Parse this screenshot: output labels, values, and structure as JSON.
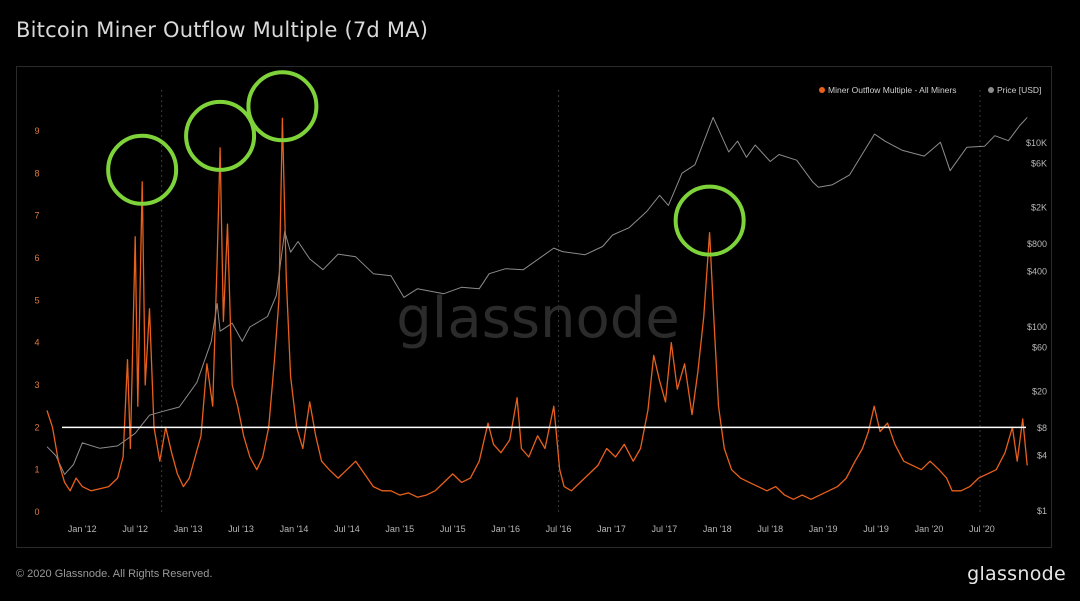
{
  "title": "Bitcoin Miner Outflow Multiple (7d MA)",
  "footer": {
    "copyright": "© 2020 Glassnode. All Rights Reserved.",
    "brand": "glassnode"
  },
  "watermark": "glassnode",
  "colors": {
    "miner_series": "#e8601c",
    "price_series": "#8c8c8c",
    "threshold_line": "#ffffff",
    "highlight_circle": "#7fd33a",
    "left_axis_text": "#e07a3c"
  },
  "chart_data": {
    "type": "line",
    "title": "Bitcoin Miner Outflow Multiple (7d MA)",
    "x_range": [
      "2011-09",
      "2020-12"
    ],
    "x_ticks": [
      "Jan '12",
      "Jul '12",
      "Jan '13",
      "Jul '13",
      "Jan '14",
      "Jul '14",
      "Jan '15",
      "Jul '15",
      "Jan '16",
      "Jul '16",
      "Jan '17",
      "Jul '17",
      "Jan '18",
      "Jul '18",
      "Jan '19",
      "Jul '19",
      "Jan '20",
      "Jul '20"
    ],
    "y_left": {
      "ticks": [
        "0",
        "1",
        "2",
        "3",
        "4",
        "5",
        "6",
        "7",
        "8",
        "9"
      ],
      "range": [
        0,
        10
      ],
      "scale": "linear"
    },
    "y_right": {
      "ticks": [
        "$1",
        "$4",
        "$8",
        "$20",
        "$60",
        "$100",
        "$400",
        "$800",
        "$2K",
        "$6K",
        "$10K"
      ],
      "scale": "log"
    },
    "legend": {
      "placement": "top-right",
      "entries": [
        "Miner Outflow Multiple - All Miners",
        "Price [USD]"
      ]
    },
    "threshold": {
      "value": 2
    },
    "series": [
      {
        "name": "Miner Outflow Multiple - All Miners",
        "axis": "left",
        "points": [
          [
            "2011-09-01",
            2.4
          ],
          [
            "2011-09-20",
            2.0
          ],
          [
            "2011-10-10",
            1.2
          ],
          [
            "2011-11-01",
            0.7
          ],
          [
            "2011-11-20",
            0.5
          ],
          [
            "2011-12-10",
            0.8
          ],
          [
            "2012-01-01",
            0.6
          ],
          [
            "2012-02-01",
            0.5
          ],
          [
            "2012-03-01",
            0.55
          ],
          [
            "2012-04-01",
            0.6
          ],
          [
            "2012-05-01",
            0.8
          ],
          [
            "2012-05-20",
            1.3
          ],
          [
            "2012-06-05",
            3.6
          ],
          [
            "2012-06-15",
            1.5
          ],
          [
            "2012-07-01",
            6.5
          ],
          [
            "2012-07-10",
            2.5
          ],
          [
            "2012-07-25",
            7.8
          ],
          [
            "2012-08-05",
            3.0
          ],
          [
            "2012-08-20",
            4.8
          ],
          [
            "2012-09-05",
            2.0
          ],
          [
            "2012-09-25",
            1.2
          ],
          [
            "2012-10-15",
            2.0
          ],
          [
            "2012-11-05",
            1.4
          ],
          [
            "2012-11-25",
            0.9
          ],
          [
            "2012-12-15",
            0.6
          ],
          [
            "2013-01-05",
            0.8
          ],
          [
            "2013-01-25",
            1.3
          ],
          [
            "2013-02-15",
            1.8
          ],
          [
            "2013-03-05",
            3.5
          ],
          [
            "2013-03-25",
            2.5
          ],
          [
            "2013-04-10",
            6.0
          ],
          [
            "2013-04-20",
            8.6
          ],
          [
            "2013-05-01",
            4.5
          ],
          [
            "2013-05-15",
            6.8
          ],
          [
            "2013-06-01",
            3.0
          ],
          [
            "2013-06-20",
            2.5
          ],
          [
            "2013-07-10",
            1.8
          ],
          [
            "2013-08-01",
            1.3
          ],
          [
            "2013-08-25",
            1.0
          ],
          [
            "2013-09-15",
            1.3
          ],
          [
            "2013-10-05",
            2.0
          ],
          [
            "2013-10-25",
            3.6
          ],
          [
            "2013-11-10",
            5.0
          ],
          [
            "2013-11-22",
            9.3
          ],
          [
            "2013-12-05",
            5.5
          ],
          [
            "2013-12-20",
            3.2
          ],
          [
            "2014-01-10",
            2.0
          ],
          [
            "2014-02-01",
            1.5
          ],
          [
            "2014-02-25",
            2.6
          ],
          [
            "2014-03-15",
            1.8
          ],
          [
            "2014-04-05",
            1.2
          ],
          [
            "2014-05-01",
            1.0
          ],
          [
            "2014-06-01",
            0.8
          ],
          [
            "2014-07-01",
            1.0
          ],
          [
            "2014-08-01",
            1.2
          ],
          [
            "2014-09-01",
            0.9
          ],
          [
            "2014-10-01",
            0.6
          ],
          [
            "2014-11-01",
            0.5
          ],
          [
            "2014-12-01",
            0.5
          ],
          [
            "2015-01-01",
            0.4
          ],
          [
            "2015-02-01",
            0.45
          ],
          [
            "2015-03-01",
            0.35
          ],
          [
            "2015-04-01",
            0.4
          ],
          [
            "2015-05-01",
            0.5
          ],
          [
            "2015-06-01",
            0.7
          ],
          [
            "2015-07-01",
            0.9
          ],
          [
            "2015-08-01",
            0.7
          ],
          [
            "2015-09-01",
            0.8
          ],
          [
            "2015-10-01",
            1.2
          ],
          [
            "2015-11-01",
            2.1
          ],
          [
            "2015-11-20",
            1.6
          ],
          [
            "2015-12-15",
            1.4
          ],
          [
            "2016-01-15",
            1.7
          ],
          [
            "2016-02-10",
            2.7
          ],
          [
            "2016-02-25",
            1.5
          ],
          [
            "2016-03-20",
            1.3
          ],
          [
            "2016-04-20",
            1.8
          ],
          [
            "2016-05-15",
            1.5
          ],
          [
            "2016-06-15",
            2.5
          ],
          [
            "2016-07-05",
            1.0
          ],
          [
            "2016-07-20",
            0.6
          ],
          [
            "2016-08-15",
            0.5
          ],
          [
            "2016-09-15",
            0.7
          ],
          [
            "2016-10-15",
            0.9
          ],
          [
            "2016-11-15",
            1.1
          ],
          [
            "2016-12-15",
            1.5
          ],
          [
            "2017-01-15",
            1.3
          ],
          [
            "2017-02-15",
            1.6
          ],
          [
            "2017-03-15",
            1.2
          ],
          [
            "2017-04-10",
            1.5
          ],
          [
            "2017-05-05",
            2.4
          ],
          [
            "2017-05-25",
            3.7
          ],
          [
            "2017-06-15",
            3.1
          ],
          [
            "2017-07-05",
            2.6
          ],
          [
            "2017-07-25",
            4.0
          ],
          [
            "2017-08-15",
            2.9
          ],
          [
            "2017-09-10",
            3.5
          ],
          [
            "2017-10-05",
            2.3
          ],
          [
            "2017-10-25",
            3.3
          ],
          [
            "2017-11-15",
            4.6
          ],
          [
            "2017-12-05",
            6.6
          ],
          [
            "2017-12-20",
            4.5
          ],
          [
            "2018-01-05",
            2.5
          ],
          [
            "2018-01-25",
            1.5
          ],
          [
            "2018-02-20",
            1.0
          ],
          [
            "2018-03-20",
            0.8
          ],
          [
            "2018-04-20",
            0.7
          ],
          [
            "2018-05-20",
            0.6
          ],
          [
            "2018-06-20",
            0.5
          ],
          [
            "2018-07-20",
            0.6
          ],
          [
            "2018-08-20",
            0.4
          ],
          [
            "2018-09-20",
            0.3
          ],
          [
            "2018-10-20",
            0.4
          ],
          [
            "2018-11-20",
            0.3
          ],
          [
            "2018-12-20",
            0.4
          ],
          [
            "2019-01-20",
            0.5
          ],
          [
            "2019-02-20",
            0.6
          ],
          [
            "2019-03-20",
            0.8
          ],
          [
            "2019-04-20",
            1.2
          ],
          [
            "2019-05-15",
            1.5
          ],
          [
            "2019-06-05",
            1.9
          ],
          [
            "2019-06-25",
            2.5
          ],
          [
            "2019-07-15",
            1.9
          ],
          [
            "2019-08-10",
            2.1
          ],
          [
            "2019-09-05",
            1.6
          ],
          [
            "2019-10-05",
            1.2
          ],
          [
            "2019-11-05",
            1.1
          ],
          [
            "2019-12-05",
            1.0
          ],
          [
            "2020-01-05",
            1.2
          ],
          [
            "2020-02-05",
            1.0
          ],
          [
            "2020-03-01",
            0.8
          ],
          [
            "2020-03-20",
            0.5
          ],
          [
            "2020-04-20",
            0.5
          ],
          [
            "2020-05-20",
            0.6
          ],
          [
            "2020-06-20",
            0.8
          ],
          [
            "2020-07-20",
            0.9
          ],
          [
            "2020-08-20",
            1.0
          ],
          [
            "2020-09-20",
            1.4
          ],
          [
            "2020-10-15",
            2.0
          ],
          [
            "2020-11-01",
            1.2
          ],
          [
            "2020-11-20",
            2.2
          ],
          [
            "2020-12-05",
            1.1
          ]
        ]
      },
      {
        "name": "Price [USD]",
        "axis": "right",
        "points": [
          [
            "2011-09-01",
            5.0
          ],
          [
            "2011-10-01",
            4.0
          ],
          [
            "2011-11-01",
            2.5
          ],
          [
            "2011-12-01",
            3.2
          ],
          [
            "2012-01-01",
            5.5
          ],
          [
            "2012-03-01",
            4.8
          ],
          [
            "2012-05-01",
            5.1
          ],
          [
            "2012-07-01",
            7.0
          ],
          [
            "2012-08-20",
            11.0
          ],
          [
            "2012-10-01",
            12.0
          ],
          [
            "2012-12-01",
            13.5
          ],
          [
            "2013-02-01",
            25.0
          ],
          [
            "2013-03-20",
            70.0
          ],
          [
            "2013-04-10",
            180.0
          ],
          [
            "2013-04-20",
            90.0
          ],
          [
            "2013-06-01",
            110.0
          ],
          [
            "2013-07-05",
            70.0
          ],
          [
            "2013-08-01",
            100.0
          ],
          [
            "2013-10-01",
            130.0
          ],
          [
            "2013-11-01",
            220.0
          ],
          [
            "2013-11-30",
            1100.0
          ],
          [
            "2013-12-20",
            650.0
          ],
          [
            "2014-01-15",
            850.0
          ],
          [
            "2014-02-25",
            550.0
          ],
          [
            "2014-04-10",
            420.0
          ],
          [
            "2014-06-01",
            620.0
          ],
          [
            "2014-08-01",
            580.0
          ],
          [
            "2014-10-01",
            380.0
          ],
          [
            "2014-12-01",
            360.0
          ],
          [
            "2015-01-15",
            210.0
          ],
          [
            "2015-03-01",
            260.0
          ],
          [
            "2015-06-01",
            230.0
          ],
          [
            "2015-08-01",
            270.0
          ],
          [
            "2015-10-01",
            260.0
          ],
          [
            "2015-11-05",
            380.0
          ],
          [
            "2016-01-01",
            430.0
          ],
          [
            "2016-03-01",
            420.0
          ],
          [
            "2016-06-15",
            720.0
          ],
          [
            "2016-07-15",
            660.0
          ],
          [
            "2016-10-01",
            610.0
          ],
          [
            "2016-12-01",
            750.0
          ],
          [
            "2017-01-05",
            1000.0
          ],
          [
            "2017-03-01",
            1200.0
          ],
          [
            "2017-05-01",
            1800.0
          ],
          [
            "2017-06-15",
            2700.0
          ],
          [
            "2017-07-15",
            2100.0
          ],
          [
            "2017-09-01",
            4700.0
          ],
          [
            "2017-10-15",
            5800.0
          ],
          [
            "2017-12-17",
            19000.0
          ],
          [
            "2018-01-15",
            12000.0
          ],
          [
            "2018-02-10",
            8000.0
          ],
          [
            "2018-03-10",
            10500.0
          ],
          [
            "2018-04-10",
            7000.0
          ],
          [
            "2018-05-10",
            9500.0
          ],
          [
            "2018-07-01",
            6300.0
          ],
          [
            "2018-08-01",
            7500.0
          ],
          [
            "2018-10-01",
            6500.0
          ],
          [
            "2018-11-25",
            3800.0
          ],
          [
            "2018-12-15",
            3300.0
          ],
          [
            "2019-02-01",
            3500.0
          ],
          [
            "2019-04-01",
            4500.0
          ],
          [
            "2019-06-26",
            12500.0
          ],
          [
            "2019-08-01",
            10500.0
          ],
          [
            "2019-10-01",
            8300.0
          ],
          [
            "2019-12-15",
            7200.0
          ],
          [
            "2020-02-10",
            10200.0
          ],
          [
            "2020-03-13",
            5000.0
          ],
          [
            "2020-05-10",
            9000.0
          ],
          [
            "2020-07-10",
            9200.0
          ],
          [
            "2020-08-15",
            12000.0
          ],
          [
            "2020-10-01",
            10600.0
          ],
          [
            "2020-11-10",
            15500.0
          ],
          [
            "2020-12-05",
            19000.0
          ]
        ]
      }
    ],
    "highlights": [
      {
        "date": "2012-07-25",
        "value": 7.8
      },
      {
        "date": "2013-04-20",
        "value": 8.6
      },
      {
        "date": "2013-11-22",
        "value": 9.3
      },
      {
        "date": "2017-12-05",
        "value": 6.6
      }
    ]
  }
}
